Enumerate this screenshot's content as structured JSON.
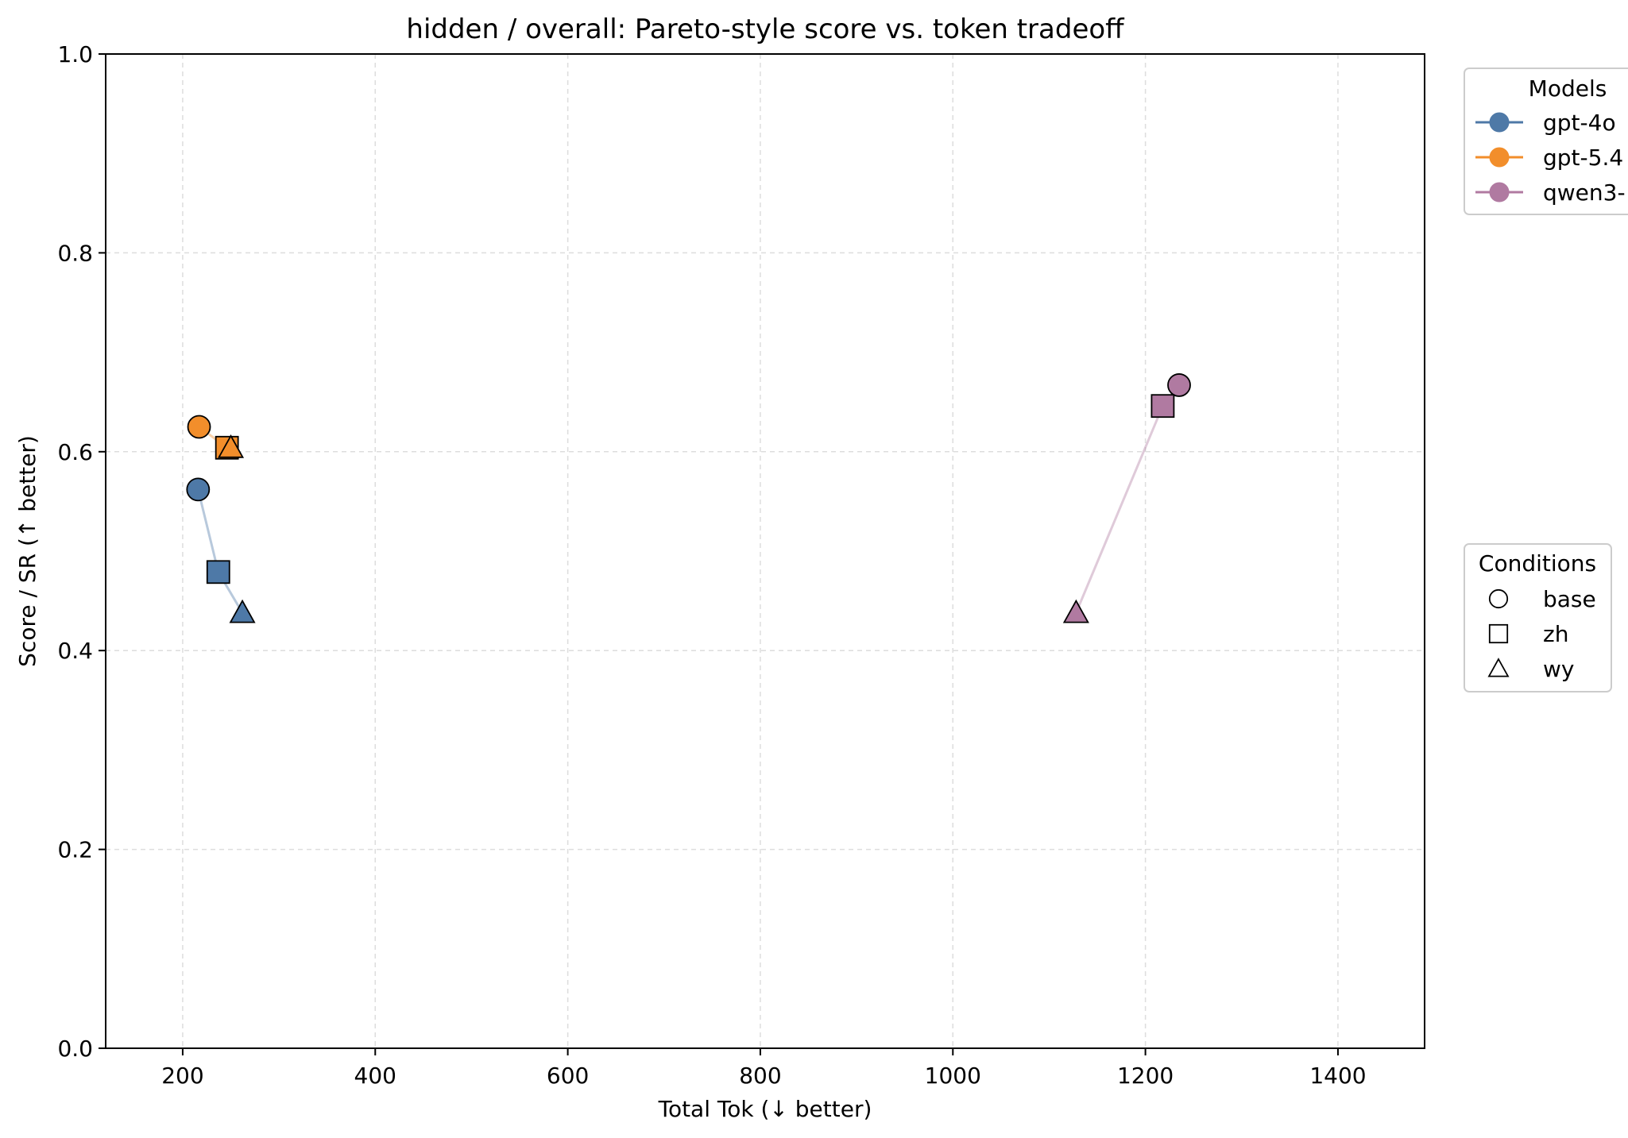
{
  "chart_data": {
    "type": "scatter",
    "title": "hidden / overall: Pareto-style score vs. token tradeoff",
    "xlabel": "Total Tok (↓ better)",
    "ylabel": "Score / SR (↑ better)",
    "xlim": [
      120,
      1490
    ],
    "ylim": [
      0.0,
      1.0
    ],
    "xticks": [
      "200",
      "400",
      "600",
      "800",
      "1000",
      "1200",
      "1400"
    ],
    "xtick_values": [
      200,
      400,
      600,
      800,
      1000,
      1200,
      1400
    ],
    "yticks": [
      "0.0",
      "0.2",
      "0.4",
      "0.6",
      "0.8",
      "1.0"
    ],
    "ytick_values": [
      0.0,
      0.2,
      0.4,
      0.6,
      0.8,
      1.0
    ],
    "grid": true,
    "legend_models": {
      "title": "Models",
      "placement": "outside-top-right",
      "entries": [
        "gpt-4o",
        "gpt-5.4",
        "qwen3-"
      ]
    },
    "legend_conditions": {
      "title": "Conditions",
      "placement": "outside-right",
      "entries": [
        {
          "label": "base",
          "marker": "circle"
        },
        {
          "label": "zh",
          "marker": "square"
        },
        {
          "label": "wy",
          "marker": "triangle"
        }
      ]
    },
    "series": [
      {
        "name": "gpt-4o",
        "color": "#4e79a7",
        "points": [
          {
            "condition": "base",
            "x": 216,
            "y": 0.562
          },
          {
            "condition": "zh",
            "x": 237,
            "y": 0.479
          },
          {
            "condition": "wy",
            "x": 262,
            "y": 0.438
          }
        ]
      },
      {
        "name": "gpt-5.4",
        "color": "#f28e2b",
        "points": [
          {
            "condition": "base",
            "x": 217,
            "y": 0.625
          },
          {
            "condition": "zh",
            "x": 246,
            "y": 0.604
          },
          {
            "condition": "wy",
            "x": 250,
            "y": 0.604
          }
        ]
      },
      {
        "name": "qwen3-",
        "color": "#b07aa1",
        "points": [
          {
            "condition": "base",
            "x": 1235,
            "y": 0.667
          },
          {
            "condition": "zh",
            "x": 1218,
            "y": 0.646
          },
          {
            "condition": "wy",
            "x": 1128,
            "y": 0.438
          }
        ]
      }
    ]
  }
}
